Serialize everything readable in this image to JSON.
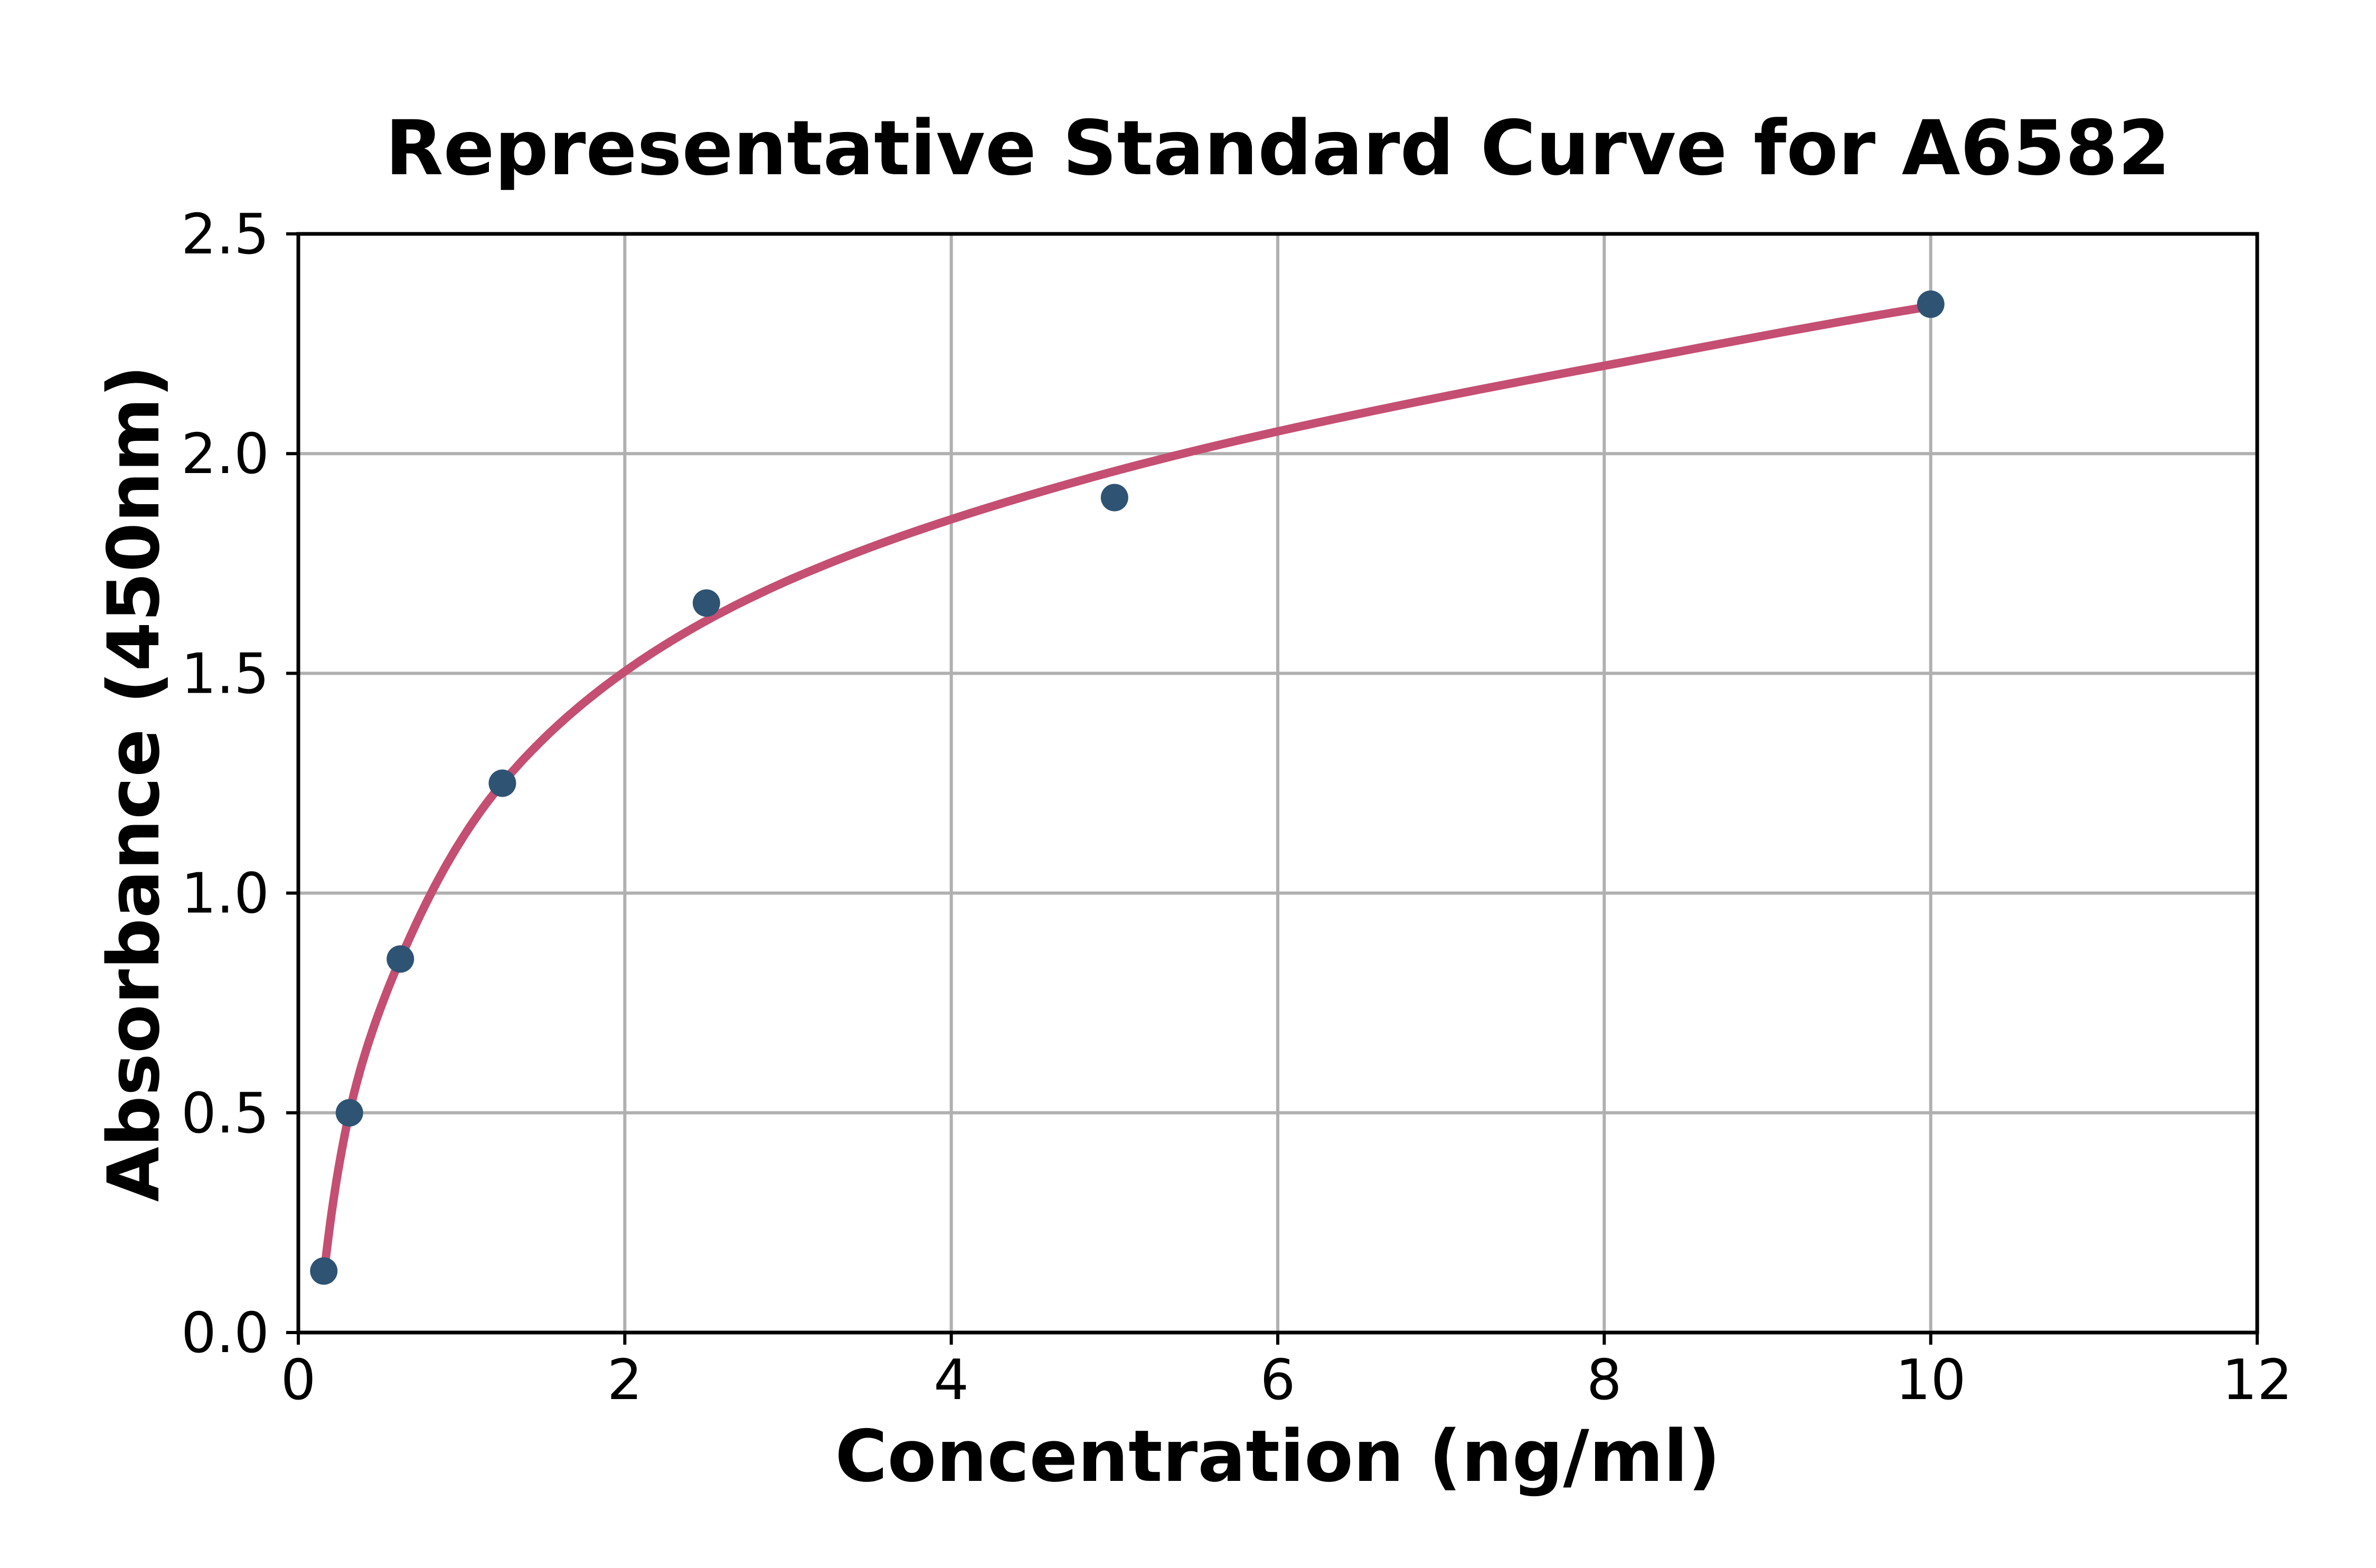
{
  "title": "Representative Standard Curve for A6582",
  "chart_data": {
    "type": "scatter",
    "title": "Representative Standard Curve for A6582",
    "xlabel": "Concentration (ng/ml)",
    "ylabel": "Absorbance (450nm)",
    "xlim": [
      0,
      12
    ],
    "ylim": [
      0,
      2.5
    ],
    "xticks": [
      0,
      2,
      4,
      6,
      8,
      10,
      12
    ],
    "yticks": [
      0.0,
      0.5,
      1.0,
      1.5,
      2.0,
      2.5
    ],
    "xticklabels": [
      "0",
      "2",
      "4",
      "6",
      "8",
      "10",
      "12"
    ],
    "yticklabels": [
      "0.0",
      "0.5",
      "1.0",
      "1.5",
      "2.0",
      "2.5"
    ],
    "grid": true,
    "legend": "none",
    "series": [
      {
        "name": "standard-points",
        "type": "scatter",
        "color": "#2f5373",
        "x": [
          0.156,
          0.313,
          0.625,
          1.25,
          2.5,
          5,
          10
        ],
        "y": [
          0.14,
          0.5,
          0.85,
          1.25,
          1.66,
          1.9,
          2.34
        ]
      },
      {
        "name": "fitted-curve",
        "type": "line",
        "color": "#c44f72",
        "x": [
          0.156,
          0.313,
          0.625,
          1.25,
          2.5,
          5,
          8,
          10
        ],
        "y": [
          0.128,
          0.5,
          0.85,
          1.25,
          1.62,
          1.96,
          2.2,
          2.335
        ]
      }
    ]
  },
  "colors": {
    "background": "#ffffff",
    "spine": "#000000",
    "grid": "#b0b0b0",
    "marker": "#2f5373",
    "curve": "#c44f72",
    "text": "#000000"
  }
}
